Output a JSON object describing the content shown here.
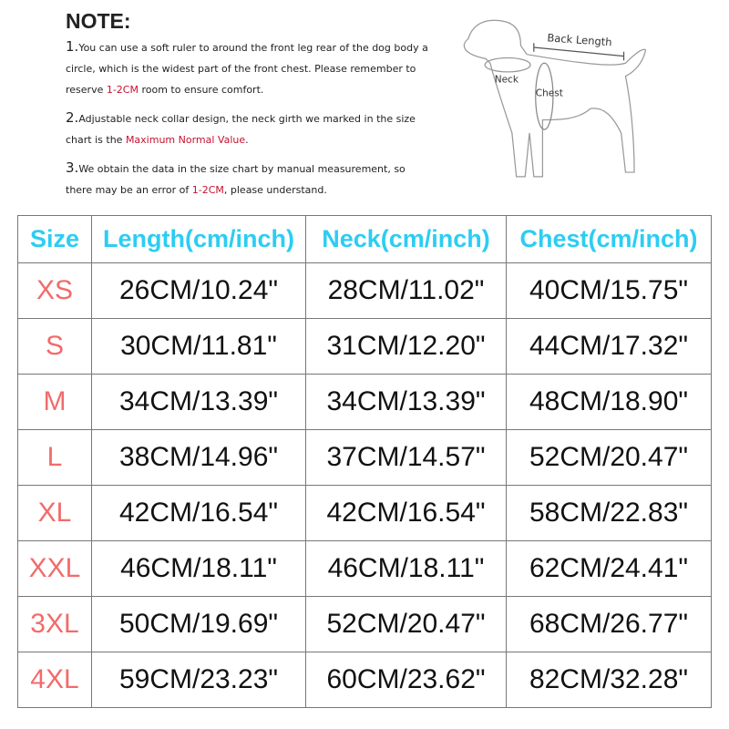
{
  "note": {
    "title": "NOTE:",
    "items": [
      {
        "num": "1.",
        "before": "You can use a soft ruler to around the front leg rear of the dog body a circle, which is the widest part of the front chest. Please remember to reserve ",
        "highlight": "1-2CM",
        "after": " room to ensure comfort."
      },
      {
        "num": "2.",
        "before": "Adjustable neck collar design, the neck girth we marked in the size chart is the ",
        "highlight": "Maximum Normal Value",
        "after": "."
      },
      {
        "num": "3.",
        "before": "We obtain the data in the size chart by manual measurement, so there may be an error of ",
        "highlight": "1-2CM",
        "after": ", please understand."
      }
    ]
  },
  "diagram": {
    "back_length": "Back Length",
    "neck": "Neck",
    "chest": "Chest"
  },
  "colors": {
    "header": "#2ccdf2",
    "size": "#f26b6b",
    "highlight": "#c8102e"
  },
  "table": {
    "headers": [
      "Size",
      "Length(cm/inch)",
      "Neck(cm/inch)",
      "Chest(cm/inch)"
    ],
    "rows": [
      [
        "XS",
        "26CM/10.24\"",
        "28CM/11.02\"",
        "40CM/15.75\""
      ],
      [
        "S",
        "30CM/11.81\"",
        "31CM/12.20\"",
        "44CM/17.32\""
      ],
      [
        "M",
        "34CM/13.39\"",
        "34CM/13.39\"",
        "48CM/18.90\""
      ],
      [
        "L",
        "38CM/14.96\"",
        "37CM/14.57\"",
        "52CM/20.47\""
      ],
      [
        "XL",
        "42CM/16.54\"",
        "42CM/16.54\"",
        "58CM/22.83\""
      ],
      [
        "XXL",
        "46CM/18.11\"",
        "46CM/18.11\"",
        "62CM/24.41\""
      ],
      [
        "3XL",
        "50CM/19.69\"",
        "52CM/20.47\"",
        "68CM/26.77\""
      ],
      [
        "4XL",
        "59CM/23.23\"",
        "60CM/23.62\"",
        "82CM/32.28\""
      ]
    ]
  }
}
